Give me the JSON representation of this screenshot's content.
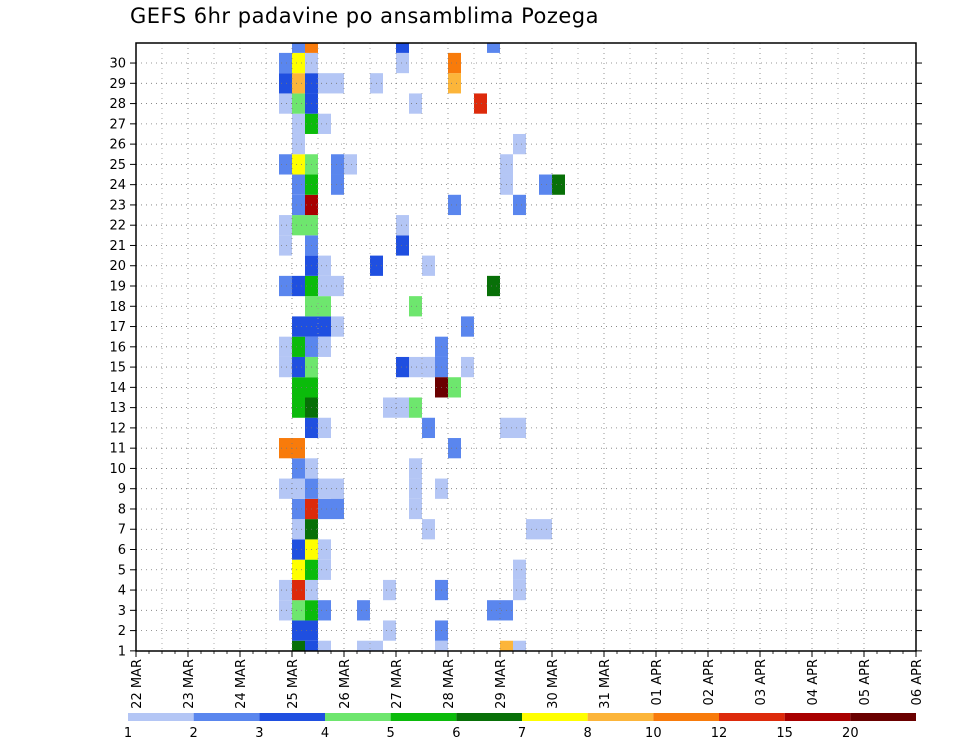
{
  "chart_data": {
    "type": "heatmap",
    "title": "GEFS 6hr padavine po ansamblima Pozega",
    "xlabel": "",
    "ylabel": "",
    "x_tick_labels": [
      "22 MAR",
      "23 MAR",
      "24 MAR",
      "25 MAR",
      "26 MAR",
      "27 MAR",
      "28 MAR",
      "29 MAR",
      "30 MAR",
      "31 MAR",
      "01 APR",
      "02 APR",
      "03 APR",
      "04 APR",
      "05 APR",
      "06 APR"
    ],
    "y_tick_labels": [
      "1",
      "2",
      "3",
      "4",
      "5",
      "6",
      "7",
      "8",
      "9",
      "10",
      "11",
      "12",
      "13",
      "14",
      "15",
      "16",
      "17",
      "18",
      "19",
      "20",
      "21",
      "22",
      "23",
      "24",
      "25",
      "26",
      "27",
      "28",
      "29",
      "30"
    ],
    "ylim": [
      0,
      30
    ],
    "grid": true,
    "legend_position": "bottom",
    "colorbar": {
      "labels": [
        "1",
        "2",
        "3",
        "4",
        "5",
        "6",
        "7",
        "8",
        "10",
        "12",
        "15",
        "20"
      ],
      "colors": [
        "#b4c6f5",
        "#5a86ee",
        "#1f4fe0",
        "#6ee66e",
        "#0bbb0b",
        "#087008",
        "#ffff00",
        "#fcb53a",
        "#f87b0b",
        "#dd2a0b",
        "#a80000",
        "#6a0000"
      ]
    },
    "cells_note": "step index (0 = 22 MAR 00Z, 6h steps), member, colour-class index (1 = lightest)",
    "cells": [
      [
        12,
        0,
        6
      ],
      [
        13,
        0,
        3
      ],
      [
        12,
        1,
        3
      ],
      [
        13,
        1,
        3
      ],
      [
        11,
        2,
        1
      ],
      [
        12,
        2,
        4
      ],
      [
        13,
        2,
        5
      ],
      [
        11,
        3,
        1
      ],
      [
        12,
        3,
        10
      ],
      [
        13,
        3,
        1
      ],
      [
        12,
        4,
        7
      ],
      [
        13,
        4,
        5
      ],
      [
        12,
        5,
        3
      ],
      [
        13,
        5,
        7
      ],
      [
        14,
        5,
        1
      ],
      [
        12,
        6,
        1
      ],
      [
        13,
        6,
        6
      ],
      [
        12,
        7,
        2
      ],
      [
        13,
        7,
        10
      ],
      [
        14,
        7,
        2
      ],
      [
        11,
        8,
        1
      ],
      [
        12,
        8,
        1
      ],
      [
        13,
        8,
        2
      ],
      [
        14,
        8,
        1
      ],
      [
        12,
        9,
        2
      ],
      [
        13,
        9,
        1
      ],
      [
        11,
        10,
        9
      ],
      [
        12,
        10,
        9
      ],
      [
        13,
        11,
        3
      ],
      [
        12,
        12,
        5
      ],
      [
        13,
        12,
        6
      ],
      [
        12,
        13,
        5
      ],
      [
        13,
        13,
        5
      ],
      [
        11,
        14,
        1
      ],
      [
        12,
        14,
        3
      ],
      [
        13,
        14,
        4
      ],
      [
        11,
        15,
        1
      ],
      [
        12,
        15,
        5
      ],
      [
        13,
        15,
        2
      ],
      [
        12,
        16,
        3
      ],
      [
        13,
        16,
        3
      ],
      [
        14,
        16,
        3
      ],
      [
        15,
        16,
        1
      ],
      [
        13,
        17,
        4
      ],
      [
        14,
        17,
        4
      ],
      [
        11,
        18,
        2
      ],
      [
        12,
        18,
        3
      ],
      [
        13,
        18,
        5
      ],
      [
        14,
        18,
        1
      ],
      [
        13,
        19,
        3
      ],
      [
        14,
        19,
        1
      ],
      [
        11,
        20,
        1
      ],
      [
        13,
        20,
        2
      ],
      [
        11,
        21,
        1
      ],
      [
        12,
        21,
        4
      ],
      [
        13,
        21,
        4
      ],
      [
        12,
        22,
        2
      ],
      [
        13,
        22,
        11
      ],
      [
        12,
        23,
        2
      ],
      [
        13,
        23,
        5
      ],
      [
        15,
        23,
        2
      ],
      [
        11,
        24,
        2
      ],
      [
        12,
        24,
        7
      ],
      [
        13,
        24,
        4
      ],
      [
        15,
        24,
        2
      ],
      [
        16,
        24,
        1
      ],
      [
        12,
        25,
        1
      ],
      [
        12,
        26,
        1
      ],
      [
        13,
        26,
        5
      ],
      [
        14,
        26,
        1
      ],
      [
        11,
        27,
        1
      ],
      [
        12,
        27,
        4
      ],
      [
        13,
        27,
        3
      ],
      [
        11,
        28,
        3
      ],
      [
        12,
        28,
        8
      ],
      [
        13,
        28,
        3
      ],
      [
        14,
        28,
        1
      ],
      [
        15,
        28,
        1
      ],
      [
        11,
        29,
        2
      ],
      [
        12,
        29,
        7
      ],
      [
        13,
        29,
        1
      ],
      [
        12,
        30,
        2
      ],
      [
        13,
        30,
        9
      ],
      [
        14,
        0,
        1
      ],
      [
        14,
        4,
        1
      ],
      [
        14,
        2,
        2
      ],
      [
        14,
        11,
        1
      ],
      [
        14,
        15,
        1
      ],
      [
        15,
        8,
        1
      ],
      [
        15,
        7,
        2
      ],
      [
        15,
        18,
        1
      ],
      [
        17,
        0,
        1
      ],
      [
        17,
        2,
        2
      ],
      [
        18,
        0,
        1
      ],
      [
        19,
        1,
        1
      ],
      [
        18,
        19,
        3
      ],
      [
        18,
        28,
        1
      ],
      [
        19,
        3,
        1
      ],
      [
        19,
        12,
        1
      ],
      [
        20,
        12,
        1
      ],
      [
        20,
        14,
        3
      ],
      [
        20,
        20,
        3
      ],
      [
        20,
        21,
        1
      ],
      [
        20,
        29,
        1
      ],
      [
        20,
        30,
        3
      ],
      [
        21,
        7,
        1
      ],
      [
        21,
        8,
        1
      ],
      [
        21,
        9,
        1
      ],
      [
        21,
        12,
        4
      ],
      [
        21,
        14,
        1
      ],
      [
        21,
        17,
        4
      ],
      [
        21,
        27,
        1
      ],
      [
        22,
        14,
        1
      ],
      [
        22,
        6,
        1
      ],
      [
        22,
        11,
        2
      ],
      [
        22,
        14,
        1
      ],
      [
        22,
        19,
        1
      ],
      [
        23,
        15,
        2
      ],
      [
        23,
        14,
        2
      ],
      [
        23,
        8,
        1
      ],
      [
        23,
        0,
        1
      ],
      [
        23,
        1,
        2
      ],
      [
        23,
        13,
        12
      ],
      [
        23,
        3,
        2
      ],
      [
        24,
        13,
        4
      ],
      [
        24,
        10,
        2
      ],
      [
        24,
        22,
        2
      ],
      [
        24,
        28,
        8
      ],
      [
        24,
        29,
        9
      ],
      [
        25,
        14,
        1
      ],
      [
        25,
        16,
        2
      ],
      [
        26,
        27,
        10
      ],
      [
        27,
        2,
        2
      ],
      [
        27,
        18,
        6
      ],
      [
        27,
        30,
        2
      ],
      [
        28,
        0,
        8
      ],
      [
        28,
        2,
        2
      ],
      [
        28,
        11,
        1
      ],
      [
        28,
        23,
        1
      ],
      [
        28,
        24,
        1
      ],
      [
        29,
        3,
        1
      ],
      [
        29,
        22,
        2
      ],
      [
        29,
        25,
        1
      ],
      [
        29,
        4,
        1
      ],
      [
        29,
        11,
        1
      ],
      [
        29,
        0,
        1
      ],
      [
        30,
        6,
        1
      ],
      [
        31,
        6,
        1
      ],
      [
        31,
        23,
        2
      ],
      [
        32,
        23,
        6
      ]
    ]
  }
}
